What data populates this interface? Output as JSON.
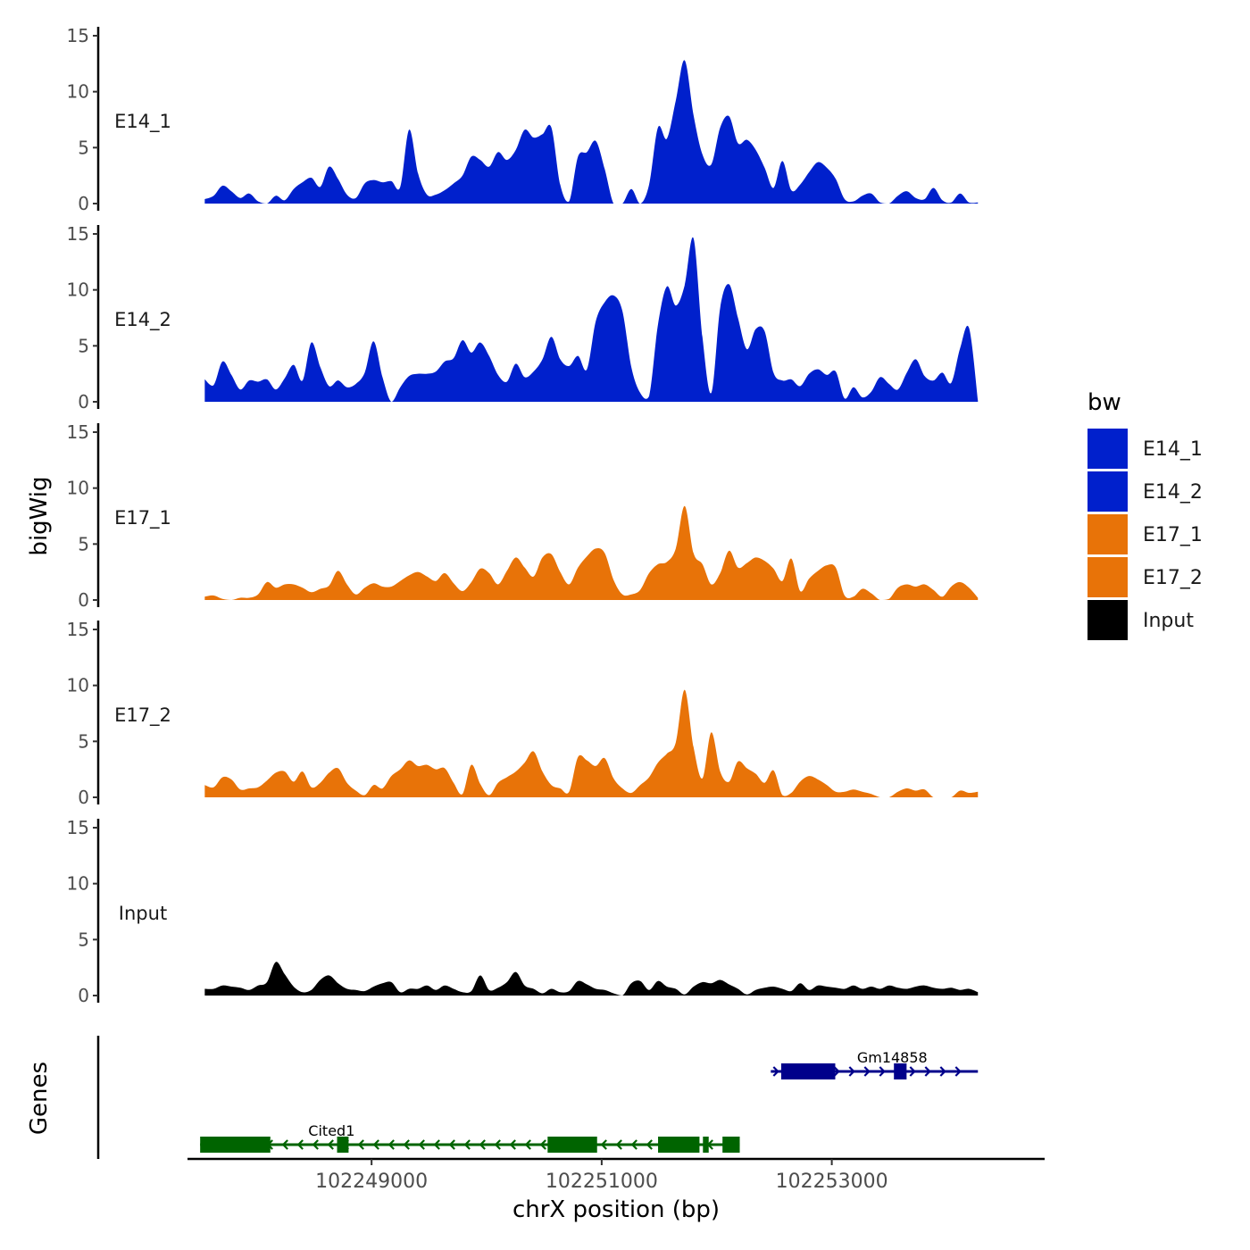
{
  "chart_data": {
    "type": "area",
    "y_axis_title": "bigWig",
    "genes_axis_title": "Genes",
    "x_axis_title": "chrX position (bp)",
    "xlim": [
      102247400,
      102254850
    ],
    "x_ticks": [
      102249000,
      102251000,
      102253000
    ],
    "x_tick_labels": [
      "102249000",
      "102251000",
      "102253000"
    ],
    "track_ylim": [
      0,
      15
    ],
    "y_ticks": [
      0,
      5,
      10,
      15
    ],
    "y_tick_labels": [
      "0",
      "5",
      "10",
      "15"
    ],
    "signal_x_start": 102247550,
    "signal_x_end": 102254270,
    "legend": {
      "title": "bw",
      "entries": [
        {
          "label": "E14_1",
          "color": "#0020CC"
        },
        {
          "label": "E14_2",
          "color": "#0020CC"
        },
        {
          "label": "E17_1",
          "color": "#E87308"
        },
        {
          "label": "E17_2",
          "color": "#E87308"
        },
        {
          "label": "Input",
          "color": "#000000"
        }
      ]
    },
    "tracks": [
      {
        "name": "E14_1",
        "color": "#0020CC",
        "values": [
          0.4,
          0.7,
          1.6,
          1.1,
          0.5,
          0.9,
          0.2,
          0,
          0.7,
          0.3,
          1.3,
          1.9,
          2.3,
          1.5,
          3.3,
          2.2,
          0.8,
          0.5,
          1.8,
          2.1,
          1.9,
          2.0,
          1.5,
          6.6,
          2.7,
          0.8,
          0.8,
          1.2,
          1.8,
          2.5,
          4.2,
          3.9,
          3.3,
          4.6,
          3.9,
          4.8,
          6.6,
          5.9,
          6.2,
          6.8,
          1.7,
          0.2,
          4.2,
          4.6,
          5.6,
          3.1,
          0,
          0,
          1.3,
          0,
          1.7,
          6.8,
          5.8,
          9.2,
          12.8,
          7.9,
          4.4,
          3.5,
          6.8,
          7.8,
          5.4,
          5.7,
          4.8,
          3.2,
          1.4,
          3.8,
          1.2,
          1.7,
          2.8,
          3.7,
          3.2,
          2.2,
          0.4,
          0.2,
          0.7,
          0.9,
          0.1,
          0,
          0.7,
          1.1,
          0.5,
          0.4,
          1.4,
          0.3,
          0.1,
          0.9,
          0.1,
          0.1
        ]
      },
      {
        "name": "E14_2",
        "color": "#0020CC",
        "values": [
          2.0,
          1.5,
          3.6,
          2.4,
          1.1,
          1.9,
          1.8,
          2.0,
          1.1,
          2.1,
          3.3,
          1.9,
          5.3,
          3.1,
          1.4,
          1.9,
          1.3,
          1.6,
          2.6,
          5.4,
          2.2,
          0,
          1.3,
          2.3,
          2.5,
          2.5,
          2.7,
          3.6,
          3.9,
          5.5,
          4.4,
          5.3,
          4.1,
          2.4,
          1.8,
          3.4,
          2.2,
          2.7,
          3.8,
          5.8,
          3.8,
          3.2,
          4.1,
          2.9,
          7.2,
          8.9,
          9.5,
          8.1,
          3.1,
          0.8,
          0.5,
          6.9,
          10.3,
          8.6,
          10.4,
          14.6,
          5.8,
          0.8,
          8.4,
          10.5,
          7.5,
          4.7,
          6.5,
          6.3,
          2.6,
          1.9,
          2.0,
          1.4,
          2.5,
          2.9,
          2.4,
          2.7,
          0.3,
          1.3,
          0.4,
          0.9,
          2.2,
          1.6,
          1.1,
          2.6,
          3.8,
          2.3,
          1.9,
          2.6,
          1.7,
          4.8,
          6.6,
          0.1
        ]
      },
      {
        "name": "E17_1",
        "color": "#E87308",
        "values": [
          0.3,
          0.4,
          0.1,
          0,
          0.2,
          0.2,
          0.5,
          1.6,
          1.1,
          1.4,
          1.4,
          1.1,
          0.7,
          1.0,
          1.3,
          2.6,
          1.4,
          0.5,
          1.1,
          1.5,
          1.2,
          1.2,
          1.7,
          2.2,
          2.5,
          2.1,
          1.7,
          2.4,
          1.5,
          0.8,
          1.6,
          2.8,
          2.4,
          1.4,
          2.6,
          3.8,
          2.9,
          2.1,
          3.8,
          4.1,
          2.5,
          1.4,
          2.9,
          3.9,
          4.6,
          4.2,
          1.8,
          0.5,
          0.5,
          0.9,
          2.4,
          3.2,
          3.4,
          4.6,
          8.4,
          4.2,
          3.2,
          1.4,
          2.4,
          4.4,
          2.9,
          3.3,
          3.8,
          3.5,
          2.8,
          1.7,
          3.7,
          0.8,
          1.9,
          2.6,
          3.1,
          2.9,
          0.4,
          0.3,
          1.0,
          0.6,
          0,
          0.1,
          1.1,
          1.4,
          1.2,
          1.4,
          0.9,
          0.3,
          1.2,
          1.6,
          1.1,
          0.2
        ]
      },
      {
        "name": "E17_2",
        "color": "#E87308",
        "values": [
          1.1,
          0.9,
          1.8,
          1.6,
          0.7,
          0.8,
          0.9,
          1.5,
          2.2,
          2.3,
          1.4,
          2.3,
          0.9,
          1.3,
          2.2,
          2.6,
          1.3,
          0.6,
          0.2,
          1.1,
          0.8,
          1.9,
          2.5,
          3.3,
          2.8,
          2.9,
          2.5,
          2.6,
          1.3,
          0.3,
          2.9,
          1.2,
          0.2,
          1.3,
          1.8,
          2.3,
          3.1,
          4.1,
          2.3,
          1.1,
          0.8,
          0.5,
          3.6,
          3.3,
          2.8,
          3.5,
          1.7,
          0.8,
          0.4,
          1.1,
          1.8,
          3.1,
          3.9,
          4.9,
          9.6,
          4.5,
          1.7,
          5.8,
          2.3,
          1.4,
          3.2,
          2.6,
          2.1,
          1.3,
          2.4,
          0.2,
          0.4,
          1.4,
          1.9,
          1.6,
          1.1,
          0.5,
          0.5,
          0.7,
          0.5,
          0.3,
          0,
          0,
          0.5,
          0.8,
          0.6,
          0.7,
          0,
          0,
          0,
          0.6,
          0.4,
          0.5
        ]
      },
      {
        "name": "Input",
        "color": "#000000",
        "values": [
          0.6,
          0.6,
          0.9,
          0.8,
          0.7,
          0.5,
          0.9,
          1.2,
          3.0,
          1.9,
          0.8,
          0.3,
          0.5,
          1.4,
          1.8,
          1.1,
          0.6,
          0.5,
          0.4,
          0.8,
          1.1,
          1.2,
          0.3,
          0.6,
          0.6,
          0.9,
          0.5,
          0.9,
          0.6,
          0.3,
          0.4,
          1.8,
          0.5,
          0.7,
          1.2,
          2.1,
          0.9,
          0.6,
          0.2,
          0.6,
          0.3,
          0.4,
          1.3,
          1.0,
          0.6,
          0.5,
          0.2,
          0,
          1.1,
          1.3,
          0.5,
          1.3,
          0.8,
          0.6,
          0.1,
          0.8,
          1.2,
          1.1,
          1.4,
          1.0,
          0.6,
          0.1,
          0.5,
          0.7,
          0.8,
          0.6,
          0.4,
          1.1,
          0.5,
          0.9,
          0.8,
          0.7,
          0.6,
          0.9,
          0.6,
          0.8,
          0.6,
          0.9,
          0.7,
          0.6,
          0.8,
          0.9,
          0.7,
          0.6,
          0.7,
          0.5,
          0.6,
          0.3
        ]
      }
    ],
    "genes": [
      {
        "name": "Gm14858",
        "color": "#00008B",
        "strand": "+",
        "start": 102252470,
        "end": 102254270,
        "exons": [
          [
            102252560,
            102253030
          ],
          [
            102253540,
            102253650
          ]
        ],
        "row": 1
      },
      {
        "name": "Cited1",
        "color": "#006400",
        "strand": "-",
        "start": 102247510,
        "end": 102252200,
        "exons": [
          [
            102247510,
            102248120
          ],
          [
            102248700,
            102248800
          ],
          [
            102250530,
            102250960
          ],
          [
            102251490,
            102251850
          ],
          [
            102251880,
            102251930
          ],
          [
            102252050,
            102252200
          ]
        ],
        "row": 2
      }
    ]
  }
}
